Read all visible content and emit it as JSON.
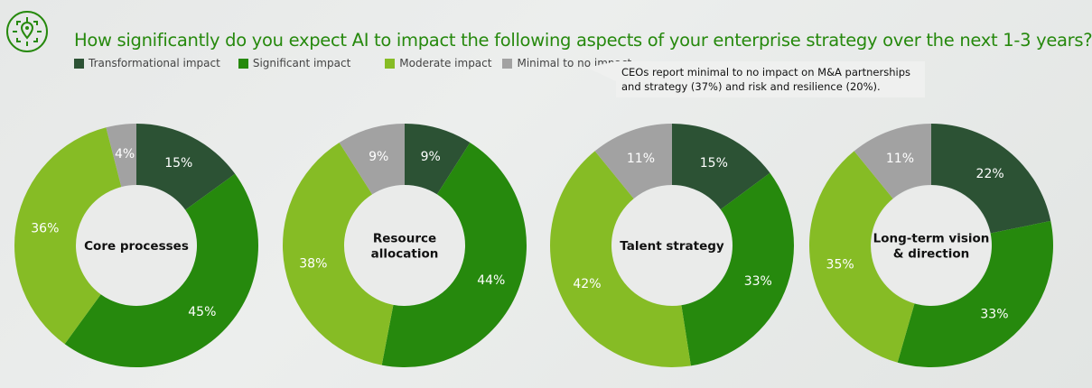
{
  "title": "How significantly do you expect AI to impact the following aspects of your enterprise strategy over the next 1-3 years?",
  "logo_icon": "location-target-icon",
  "callout": "CEOs report minimal to no impact on M&A partnerships and strategy (37%) and risk and resilience (20%).",
  "chart_data": {
    "type": "donut",
    "legend": [
      {
        "name": "Transformational impact",
        "color": "#2c5234"
      },
      {
        "name": "Significant impact",
        "color": "#26890d"
      },
      {
        "name": "Moderate impact",
        "color": "#86bc25"
      },
      {
        "name": "Minimal to no impact",
        "color": "#a2a2a2"
      }
    ],
    "legend_placement": "top-left",
    "charts": [
      {
        "label": "Core processes",
        "values": [
          15,
          45,
          36,
          4
        ]
      },
      {
        "label": "Resource allocation",
        "values": [
          9,
          44,
          38,
          9
        ]
      },
      {
        "label": "Talent strategy",
        "values": [
          15,
          33,
          42,
          11
        ]
      },
      {
        "label": "Long-term vision & direction",
        "values": [
          22,
          33,
          35,
          11
        ]
      }
    ]
  }
}
